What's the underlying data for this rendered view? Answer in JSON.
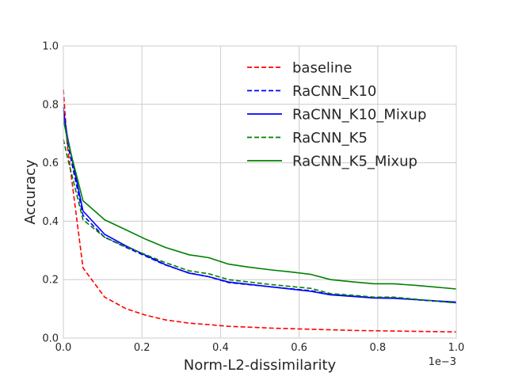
{
  "chart_data": {
    "type": "line",
    "title": "",
    "xlabel": "Norm-L2-dissimilarity",
    "ylabel": "Accuracy",
    "x_offset_label": "1e−3",
    "xlim": [
      0,
      1.0
    ],
    "ylim": [
      0,
      1.0
    ],
    "x_ticks": [
      0.0,
      0.2,
      0.4,
      0.6,
      0.8,
      1.0
    ],
    "x_tick_labels": [
      "0.0",
      "0.2",
      "0.4",
      "0.6",
      "0.8",
      "1.0"
    ],
    "y_ticks": [
      0.0,
      0.2,
      0.4,
      0.6,
      0.8,
      1.0
    ],
    "y_tick_labels": [
      "0.0",
      "0.2",
      "0.4",
      "0.6",
      "0.8",
      "1.0"
    ],
    "grid": true,
    "legend_position": "top-right",
    "series": [
      {
        "name": "baseline",
        "color": "#ff0000",
        "dashed": true,
        "x": [
          0.0,
          0.01,
          0.05,
          0.105,
          0.16,
          0.21,
          0.26,
          0.32,
          0.37,
          0.42,
          0.53,
          0.63,
          0.74,
          0.84,
          1.0
        ],
        "y": [
          0.85,
          0.66,
          0.24,
          0.14,
          0.1,
          0.078,
          0.062,
          0.051,
          0.046,
          0.04,
          0.034,
          0.03,
          0.026,
          0.024,
          0.021
        ]
      },
      {
        "name": "RaCNN_K10",
        "color": "#0000ff",
        "dashed": true,
        "x": [
          0.0,
          0.01,
          0.05,
          0.105,
          0.16,
          0.21,
          0.26,
          0.32,
          0.37,
          0.42,
          0.53,
          0.63,
          0.68,
          0.74,
          0.79,
          0.84,
          1.0
        ],
        "y": [
          0.79,
          0.67,
          0.42,
          0.345,
          0.31,
          0.28,
          0.25,
          0.223,
          0.21,
          0.19,
          0.175,
          0.162,
          0.149,
          0.143,
          0.138,
          0.137,
          0.121
        ]
      },
      {
        "name": "RaCNN_K10_Mixup",
        "color": "#0000ff",
        "dashed": false,
        "x": [
          0.0,
          0.01,
          0.05,
          0.105,
          0.16,
          0.21,
          0.26,
          0.32,
          0.37,
          0.42,
          0.53,
          0.63,
          0.68,
          0.74,
          0.79,
          0.84,
          1.0
        ],
        "y": [
          0.78,
          0.69,
          0.435,
          0.355,
          0.315,
          0.283,
          0.251,
          0.222,
          0.21,
          0.192,
          0.175,
          0.16,
          0.148,
          0.142,
          0.137,
          0.136,
          0.123
        ]
      },
      {
        "name": "RaCNN_K5",
        "color": "#008000",
        "dashed": true,
        "x": [
          0.0,
          0.01,
          0.05,
          0.105,
          0.16,
          0.21,
          0.26,
          0.32,
          0.37,
          0.42,
          0.53,
          0.63,
          0.68,
          0.74,
          0.79,
          0.84,
          1.0
        ],
        "y": [
          0.68,
          0.62,
          0.405,
          0.345,
          0.312,
          0.285,
          0.258,
          0.23,
          0.22,
          0.2,
          0.183,
          0.17,
          0.152,
          0.146,
          0.14,
          0.14,
          0.12
        ]
      },
      {
        "name": "RaCNN_K5_Mixup",
        "color": "#008000",
        "dashed": false,
        "x": [
          0.0,
          0.01,
          0.05,
          0.105,
          0.16,
          0.21,
          0.26,
          0.32,
          0.37,
          0.42,
          0.47,
          0.53,
          0.58,
          0.63,
          0.68,
          0.74,
          0.79,
          0.84,
          0.9,
          1.0
        ],
        "y": [
          0.75,
          0.68,
          0.47,
          0.405,
          0.37,
          0.338,
          0.31,
          0.285,
          0.275,
          0.253,
          0.243,
          0.233,
          0.226,
          0.218,
          0.2,
          0.192,
          0.186,
          0.186,
          0.18,
          0.168
        ]
      }
    ]
  }
}
